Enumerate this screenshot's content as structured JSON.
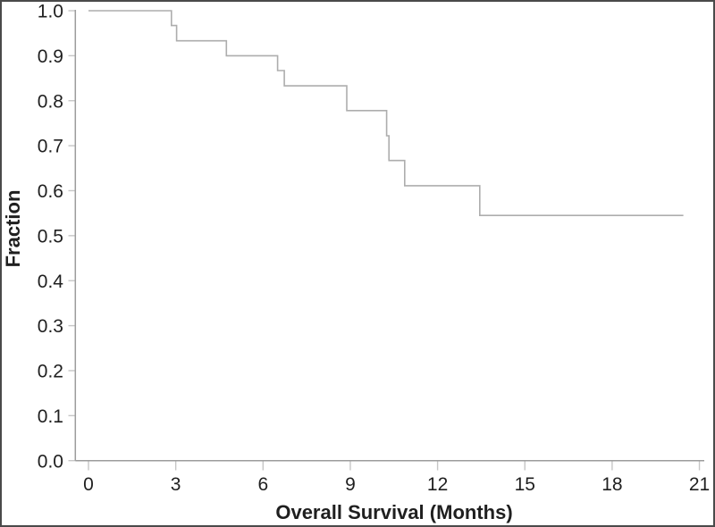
{
  "window": {
    "background": "#ffffff",
    "border_color": "#4a4a4a"
  },
  "colors": {
    "curve": "#adadad",
    "axis": "#9c9c9c",
    "tick": "#c6c6c6",
    "text": "#1f1f1f"
  },
  "chart_data": {
    "type": "line",
    "subtype": "kaplan-meier-step",
    "title": "",
    "xlabel": "Overall Survival (Months)",
    "ylabel": "Fraction",
    "xlim": [
      0,
      21
    ],
    "ylim": [
      0.0,
      1.0
    ],
    "xticks": [
      "0",
      "3",
      "6",
      "9",
      "12",
      "15",
      "18",
      "21"
    ],
    "yticks": [
      "0.0",
      "0.1",
      "0.2",
      "0.3",
      "0.4",
      "0.5",
      "0.6",
      "0.7",
      "0.8",
      "0.9",
      "1.0"
    ],
    "grid": "off",
    "legend": "none",
    "series": [
      {
        "name": "Overall Survival",
        "step": "after",
        "points": [
          [
            0,
            1.0
          ],
          [
            2.85,
            0.967
          ],
          [
            3.03,
            0.933
          ],
          [
            4.74,
            0.9
          ],
          [
            6.5,
            0.867
          ],
          [
            6.73,
            0.833
          ],
          [
            8.88,
            0.778
          ],
          [
            10.25,
            0.722
          ],
          [
            10.33,
            0.667
          ],
          [
            10.87,
            0.611
          ],
          [
            13.45,
            0.545
          ]
        ],
        "end_x": 20.45
      }
    ]
  }
}
